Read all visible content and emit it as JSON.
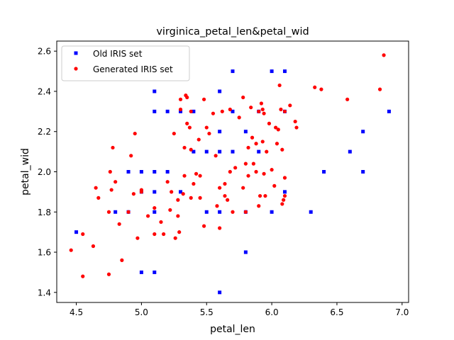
{
  "chart_data": {
    "type": "scatter",
    "title": "virginica_petal_len&petal_wid",
    "xlabel": "petal_len",
    "ylabel": "petal_wid",
    "xlim": [
      4.35,
      7.05
    ],
    "ylim": [
      1.35,
      2.65
    ],
    "xticks": [
      4.5,
      5.0,
      5.5,
      6.0,
      6.5,
      7.0
    ],
    "yticks": [
      1.4,
      1.6,
      1.8,
      2.0,
      2.2,
      2.4,
      2.6
    ],
    "grid": false,
    "legend_position": "top-left",
    "series": [
      {
        "name": "Old IRIS set",
        "marker": "square",
        "color": "#0000ff",
        "points": [
          [
            4.5,
            1.7
          ],
          [
            4.8,
            1.8
          ],
          [
            4.9,
            1.8
          ],
          [
            4.9,
            2.0
          ],
          [
            5.0,
            1.5
          ],
          [
            5.0,
            1.9
          ],
          [
            5.0,
            2.0
          ],
          [
            5.1,
            1.5
          ],
          [
            5.1,
            1.8
          ],
          [
            5.1,
            1.9
          ],
          [
            5.1,
            2.0
          ],
          [
            5.1,
            2.3
          ],
          [
            5.1,
            2.4
          ],
          [
            5.2,
            2.0
          ],
          [
            5.2,
            2.3
          ],
          [
            5.3,
            1.9
          ],
          [
            5.3,
            2.3
          ],
          [
            5.4,
            2.1
          ],
          [
            5.4,
            2.3
          ],
          [
            5.5,
            1.8
          ],
          [
            5.5,
            2.1
          ],
          [
            5.6,
            1.4
          ],
          [
            5.6,
            1.8
          ],
          [
            5.6,
            2.1
          ],
          [
            5.6,
            2.2
          ],
          [
            5.6,
            2.4
          ],
          [
            5.7,
            2.1
          ],
          [
            5.7,
            2.3
          ],
          [
            5.7,
            2.5
          ],
          [
            5.8,
            1.6
          ],
          [
            5.8,
            1.8
          ],
          [
            5.8,
            2.2
          ],
          [
            5.9,
            2.1
          ],
          [
            5.9,
            2.3
          ],
          [
            6.0,
            1.8
          ],
          [
            6.0,
            2.5
          ],
          [
            6.1,
            1.9
          ],
          [
            6.1,
            2.3
          ],
          [
            6.1,
            2.5
          ],
          [
            6.3,
            1.8
          ],
          [
            6.4,
            2.0
          ],
          [
            6.6,
            2.1
          ],
          [
            6.7,
            2.0
          ],
          [
            6.7,
            2.2
          ],
          [
            6.9,
            2.3
          ]
        ]
      },
      {
        "name": "Generated IRIS set",
        "marker": "circle",
        "color": "#ff0000",
        "points": [
          [
            4.46,
            1.61
          ],
          [
            4.55,
            1.48
          ],
          [
            4.55,
            1.69
          ],
          [
            4.63,
            1.63
          ],
          [
            4.65,
            1.92
          ],
          [
            4.67,
            1.87
          ],
          [
            4.75,
            1.49
          ],
          [
            4.75,
            1.8
          ],
          [
            4.76,
            2.0
          ],
          [
            4.77,
            1.91
          ],
          [
            4.78,
            2.12
          ],
          [
            4.8,
            1.95
          ],
          [
            4.83,
            1.74
          ],
          [
            4.85,
            1.56
          ],
          [
            4.9,
            1.8
          ],
          [
            4.92,
            2.08
          ],
          [
            4.94,
            1.89
          ],
          [
            4.95,
            2.19
          ],
          [
            4.97,
            1.67
          ],
          [
            5.0,
            1.91
          ],
          [
            5.0,
            1.9
          ],
          [
            5.05,
            1.78
          ],
          [
            5.1,
            1.69
          ],
          [
            5.1,
            1.82
          ],
          [
            5.15,
            1.75
          ],
          [
            5.17,
            1.69
          ],
          [
            5.2,
            1.95
          ],
          [
            5.22,
            1.81
          ],
          [
            5.23,
            1.9
          ],
          [
            5.25,
            2.19
          ],
          [
            5.26,
            1.67
          ],
          [
            5.28,
            1.78
          ],
          [
            5.28,
            1.86
          ],
          [
            5.29,
            1.7
          ],
          [
            5.3,
            2.36
          ],
          [
            5.3,
            2.31
          ],
          [
            5.32,
            1.89
          ],
          [
            5.33,
            2.12
          ],
          [
            5.33,
            1.98
          ],
          [
            5.34,
            2.38
          ],
          [
            5.35,
            2.37
          ],
          [
            5.35,
            2.24
          ],
          [
            5.37,
            2.22
          ],
          [
            5.38,
            2.11
          ],
          [
            5.38,
            2.3
          ],
          [
            5.38,
            1.87
          ],
          [
            5.4,
            1.94
          ],
          [
            5.42,
            1.99
          ],
          [
            5.44,
            2.16
          ],
          [
            5.45,
            1.87
          ],
          [
            5.45,
            1.98
          ],
          [
            5.48,
            1.73
          ],
          [
            5.48,
            2.36
          ],
          [
            5.5,
            2.22
          ],
          [
            5.52,
            2.19
          ],
          [
            5.55,
            2.29
          ],
          [
            5.57,
            2.08
          ],
          [
            5.58,
            1.83
          ],
          [
            5.6,
            1.72
          ],
          [
            5.6,
            1.92
          ],
          [
            5.62,
            2.3
          ],
          [
            5.64,
            1.88
          ],
          [
            5.64,
            1.94
          ],
          [
            5.66,
            1.86
          ],
          [
            5.68,
            2.0
          ],
          [
            5.68,
            2.31
          ],
          [
            5.7,
            1.8
          ],
          [
            5.72,
            2.02
          ],
          [
            5.75,
            2.27
          ],
          [
            5.78,
            2.37
          ],
          [
            5.78,
            1.92
          ],
          [
            5.8,
            2.04
          ],
          [
            5.8,
            1.8
          ],
          [
            5.82,
            2.12
          ],
          [
            5.82,
            1.98
          ],
          [
            5.84,
            2.32
          ],
          [
            5.85,
            2.17
          ],
          [
            5.86,
            2.04
          ],
          [
            5.88,
            2.0
          ],
          [
            5.88,
            2.14
          ],
          [
            5.9,
            1.83
          ],
          [
            5.9,
            2.3
          ],
          [
            5.91,
            1.88
          ],
          [
            5.92,
            2.34
          ],
          [
            5.93,
            2.31
          ],
          [
            5.93,
            2.15
          ],
          [
            5.94,
            1.99
          ],
          [
            5.94,
            2.29
          ],
          [
            5.95,
            1.88
          ],
          [
            5.96,
            2.1
          ],
          [
            5.98,
            2.24
          ],
          [
            6.0,
            2.01
          ],
          [
            6.02,
            1.93
          ],
          [
            6.03,
            2.22
          ],
          [
            6.04,
            2.14
          ],
          [
            6.05,
            2.21
          ],
          [
            6.06,
            2.43
          ],
          [
            6.07,
            2.31
          ],
          [
            6.08,
            1.84
          ],
          [
            6.08,
            2.11
          ],
          [
            6.09,
            1.86
          ],
          [
            6.1,
            1.88
          ],
          [
            6.1,
            2.3
          ],
          [
            6.1,
            1.97
          ],
          [
            6.14,
            2.33
          ],
          [
            6.18,
            2.25
          ],
          [
            6.19,
            2.22
          ],
          [
            6.33,
            2.42
          ],
          [
            6.38,
            2.41
          ],
          [
            6.58,
            2.36
          ],
          [
            6.83,
            2.41
          ],
          [
            6.86,
            2.58
          ]
        ]
      }
    ]
  }
}
